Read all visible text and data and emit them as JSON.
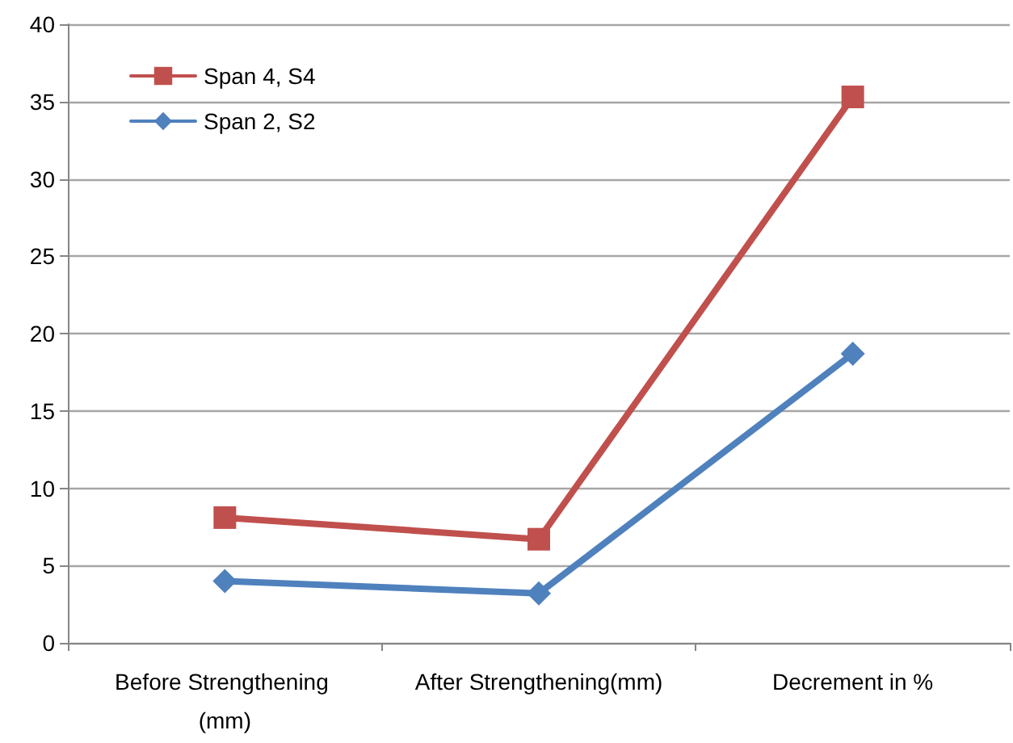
{
  "chart_data": {
    "type": "line",
    "categories": [
      "Before Strengthening (mm)",
      "After Strengthening(mm)",
      "Decrement in %"
    ],
    "series": [
      {
        "name": "Span 4, S4",
        "color": "#c0504d",
        "marker": "square",
        "values": [
          8.1,
          6.7,
          35.3
        ]
      },
      {
        "name": "Span 2, S2",
        "color": "#4f81bd",
        "marker": "diamond",
        "values": [
          4.0,
          3.2,
          18.7
        ]
      }
    ],
    "ylim": [
      0,
      40
    ],
    "yticks": [
      0,
      5,
      10,
      15,
      20,
      25,
      30,
      35,
      40
    ],
    "grid": "y",
    "legend": "top left"
  }
}
